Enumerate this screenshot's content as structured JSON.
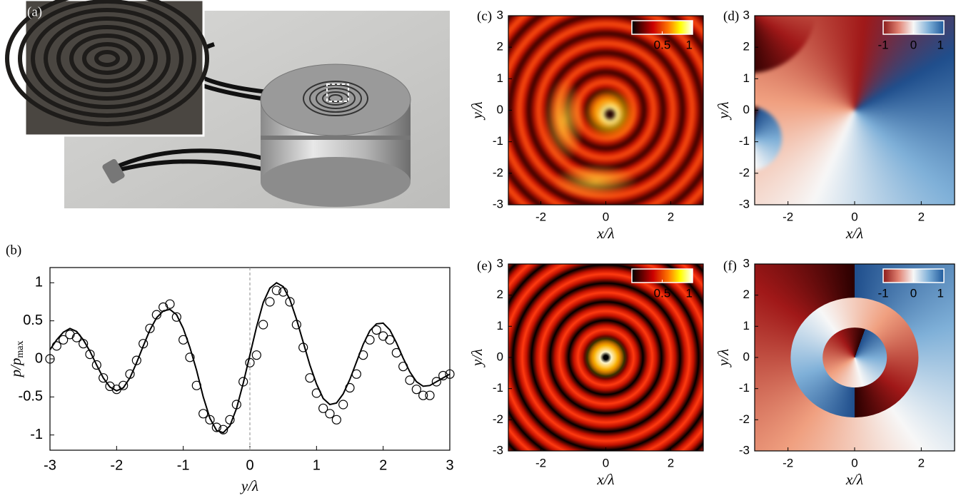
{
  "chart_data": [
    {
      "type": "image",
      "label": "(a)"
    },
    {
      "type": "line",
      "label": "(b)",
      "xlabel": "y/λ",
      "ylabel": "p/p",
      "ylabel_sub": "max",
      "xlim": [
        -3,
        3
      ],
      "ylim": [
        -1.2,
        1.2
      ],
      "xticks": [
        -3,
        -2,
        -1,
        0,
        1,
        2,
        3
      ],
      "yticks": [
        -1,
        -0.5,
        0,
        0.5,
        1
      ],
      "vline": 0,
      "x": [
        -3.0,
        -2.9,
        -2.8,
        -2.7,
        -2.6,
        -2.5,
        -2.4,
        -2.3,
        -2.2,
        -2.1,
        -2.0,
        -1.9,
        -1.8,
        -1.7,
        -1.6,
        -1.5,
        -1.4,
        -1.3,
        -1.2,
        -1.1,
        -1.0,
        -0.9,
        -0.8,
        -0.7,
        -0.6,
        -0.5,
        -0.4,
        -0.3,
        -0.2,
        -0.1,
        0.0,
        0.1,
        0.2,
        0.3,
        0.4,
        0.5,
        0.6,
        0.7,
        0.8,
        0.9,
        1.0,
        1.1,
        1.2,
        1.3,
        1.4,
        1.5,
        1.6,
        1.7,
        1.8,
        1.9,
        2.0,
        2.1,
        2.2,
        2.3,
        2.4,
        2.5,
        2.6,
        2.7,
        2.8,
        2.9,
        3.0
      ],
      "series": [
        {
          "style": "line",
          "color": "#000000",
          "values": [
            0.12,
            0.25,
            0.35,
            0.4,
            0.36,
            0.25,
            0.1,
            -0.08,
            -0.25,
            -0.37,
            -0.42,
            -0.38,
            -0.25,
            -0.05,
            0.17,
            0.38,
            0.54,
            0.63,
            0.65,
            0.58,
            0.4,
            0.15,
            -0.15,
            -0.5,
            -0.78,
            -0.94,
            -0.97,
            -0.88,
            -0.65,
            -0.32,
            0.05,
            0.42,
            0.74,
            0.93,
            1.0,
            0.95,
            0.78,
            0.52,
            0.22,
            -0.08,
            -0.33,
            -0.52,
            -0.6,
            -0.58,
            -0.46,
            -0.27,
            -0.04,
            0.19,
            0.37,
            0.46,
            0.47,
            0.38,
            0.21,
            0.01,
            -0.17,
            -0.3,
            -0.36,
            -0.35,
            -0.3,
            -0.25,
            -0.2
          ]
        },
        {
          "style": "markers",
          "color": "#000000",
          "values": [
            0.0,
            0.17,
            0.25,
            0.32,
            0.28,
            0.2,
            0.06,
            -0.08,
            -0.25,
            -0.36,
            -0.4,
            -0.35,
            -0.2,
            -0.02,
            0.2,
            0.4,
            0.58,
            0.68,
            0.72,
            0.55,
            0.25,
            0.02,
            -0.35,
            -0.72,
            -0.8,
            -0.9,
            -0.93,
            -0.8,
            -0.6,
            -0.3,
            -0.05,
            0.05,
            0.45,
            0.75,
            0.9,
            0.88,
            0.75,
            0.45,
            0.15,
            -0.25,
            -0.45,
            -0.65,
            -0.72,
            -0.8,
            -0.6,
            -0.38,
            -0.2,
            0.05,
            0.25,
            0.38,
            0.3,
            0.25,
            0.08,
            -0.1,
            -0.28,
            -0.4,
            -0.48,
            -0.48,
            -0.3,
            -0.22,
            -0.2
          ]
        }
      ]
    },
    {
      "type": "heatmap",
      "label": "(c)",
      "xlabel": "x/λ",
      "ylabel": "y/λ",
      "xlim": [
        -3,
        3
      ],
      "ylim": [
        -3,
        3
      ],
      "xticks": [
        -2,
        0,
        2
      ],
      "yticks": [
        -3,
        -2,
        -1,
        0,
        1,
        2,
        3
      ],
      "colorbar": {
        "colormap": "hot",
        "lim": [
          0,
          1
        ],
        "ticks": [
          0.5,
          1
        ]
      }
    },
    {
      "type": "heatmap",
      "label": "(d)",
      "xlabel": "x/λ",
      "ylabel": "y/λ",
      "xlim": [
        -3,
        3
      ],
      "ylim": [
        -3,
        3
      ],
      "xticks": [
        -2,
        0,
        2
      ],
      "yticks": [
        -3,
        -2,
        -1,
        0,
        1,
        2,
        3
      ],
      "colorbar": {
        "colormap": "rdbu",
        "lim": [
          -1,
          1
        ],
        "ticks": [
          -1,
          0,
          1
        ]
      }
    },
    {
      "type": "heatmap",
      "label": "(e)",
      "xlabel": "x/λ",
      "ylabel": "y/λ",
      "xlim": [
        -3,
        3
      ],
      "ylim": [
        -3,
        3
      ],
      "xticks": [
        -2,
        0,
        2
      ],
      "yticks": [
        -3,
        -2,
        -1,
        0,
        1,
        2,
        3
      ],
      "colorbar": {
        "colormap": "hot",
        "lim": [
          0,
          1
        ],
        "ticks": [
          0.5,
          1
        ]
      }
    },
    {
      "type": "heatmap",
      "label": "(f)",
      "xlabel": "x/λ",
      "ylabel": "y/λ",
      "xlim": [
        -3,
        3
      ],
      "ylim": [
        -3,
        3
      ],
      "xticks": [
        -2,
        0,
        2
      ],
      "yticks": [
        -3,
        -2,
        -1,
        0,
        1,
        2,
        3
      ],
      "colorbar": {
        "colormap": "rdbu",
        "lim": [
          -1,
          1
        ],
        "ticks": [
          -1,
          0,
          1
        ]
      }
    }
  ]
}
